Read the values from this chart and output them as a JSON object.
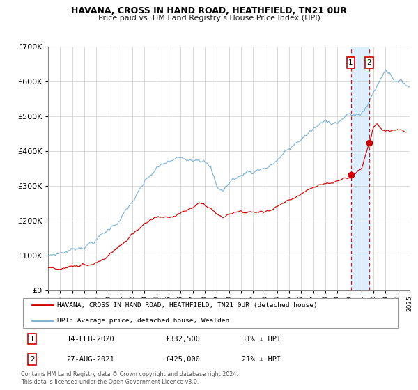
{
  "title": "HAVANA, CROSS IN HAND ROAD, HEATHFIELD, TN21 0UR",
  "subtitle": "Price paid vs. HM Land Registry's House Price Index (HPI)",
  "legend_line1": "HAVANA, CROSS IN HAND ROAD, HEATHFIELD, TN21 0UR (detached house)",
  "legend_line2": "HPI: Average price, detached house, Wealden",
  "footnote": "Contains HM Land Registry data © Crown copyright and database right 2024.\nThis data is licensed under the Open Government Licence v3.0.",
  "red_color": "#cc0000",
  "blue_color": "#7ab0d4",
  "shade_color": "#ddeeff",
  "marker1_date": 2020.12,
  "marker1_value": 332500,
  "marker1_label": "14-FEB-2020",
  "marker1_price": "£332,500",
  "marker1_pct": "31% ↓ HPI",
  "marker2_date": 2021.65,
  "marker2_value": 425000,
  "marker2_label": "27-AUG-2021",
  "marker2_price": "£425,000",
  "marker2_pct": "21% ↓ HPI",
  "xmin": 1995,
  "xmax": 2025,
  "ymin": 0,
  "ymax": 700000
}
